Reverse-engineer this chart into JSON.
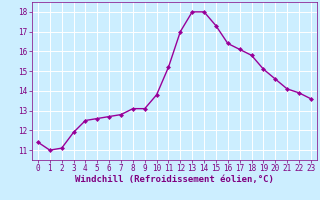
{
  "x": [
    0,
    1,
    2,
    3,
    4,
    5,
    6,
    7,
    8,
    9,
    10,
    11,
    12,
    13,
    14,
    15,
    16,
    17,
    18,
    19,
    20,
    21,
    22,
    23
  ],
  "y": [
    11.4,
    11.0,
    11.1,
    11.9,
    12.5,
    12.6,
    12.7,
    12.8,
    13.1,
    13.1,
    13.8,
    15.2,
    17.0,
    18.0,
    18.0,
    17.3,
    16.4,
    16.1,
    15.8,
    15.1,
    14.6,
    14.1,
    13.9,
    13.6
  ],
  "line_color": "#990099",
  "marker": "D",
  "marker_size": 2.0,
  "bg_color": "#cceeff",
  "grid_color": "#ffffff",
  "xlabel": "Windchill (Refroidissement éolien,°C)",
  "xlabel_color": "#800080",
  "tick_color": "#800080",
  "ylim": [
    10.5,
    18.5
  ],
  "xlim": [
    -0.5,
    23.5
  ],
  "yticks": [
    11,
    12,
    13,
    14,
    15,
    16,
    17,
    18
  ],
  "xticks": [
    0,
    1,
    2,
    3,
    4,
    5,
    6,
    7,
    8,
    9,
    10,
    11,
    12,
    13,
    14,
    15,
    16,
    17,
    18,
    19,
    20,
    21,
    22,
    23
  ],
  "tick_fontsize": 5.5,
  "xlabel_fontsize": 6.5,
  "line_width": 1.0
}
